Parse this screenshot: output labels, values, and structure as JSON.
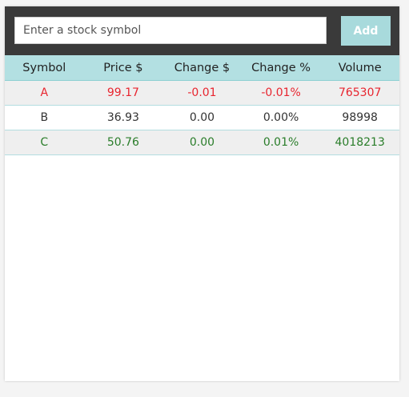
{
  "input": {
    "placeholder": "Enter a stock symbol",
    "value": ""
  },
  "add_button": {
    "label": "Add"
  },
  "colors": {
    "header_bar": "#3a3a3a",
    "accent": "#a8dadc",
    "table_header": "#b3e0e2",
    "negative": "#e8252f",
    "neutral": "#333333",
    "positive": "#2a7d2a"
  },
  "table": {
    "headers": [
      "Symbol",
      "Price $",
      "Change $",
      "Change %",
      "Volume"
    ],
    "rows": [
      {
        "symbol": "A",
        "price": "99.17",
        "change": "-0.01",
        "change_pct": "-0.01%",
        "volume": "765307",
        "trend": "negative"
      },
      {
        "symbol": "B",
        "price": "36.93",
        "change": "0.00",
        "change_pct": "0.00%",
        "volume": "98998",
        "trend": "neutral"
      },
      {
        "symbol": "C",
        "price": "50.76",
        "change": "0.00",
        "change_pct": "0.01%",
        "volume": "4018213",
        "trend": "positive"
      }
    ]
  }
}
